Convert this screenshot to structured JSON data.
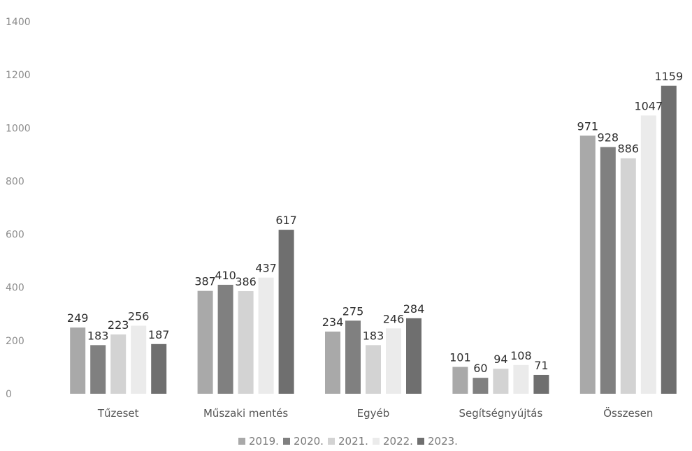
{
  "chart_data": {
    "type": "bar",
    "title": "",
    "xlabel": "",
    "ylabel": "",
    "categories": [
      "Tűzeset",
      "Műszaki mentés",
      "Egyéb",
      "Segítségnyújtás",
      "Összesen"
    ],
    "series": [
      {
        "name": "2019.",
        "color": "#a9a9a9",
        "values": [
          249,
          387,
          234,
          101,
          971
        ]
      },
      {
        "name": "2020.",
        "color": "#808080",
        "values": [
          183,
          410,
          275,
          60,
          928
        ]
      },
      {
        "name": "2021.",
        "color": "#d3d3d3",
        "values": [
          223,
          386,
          183,
          94,
          886
        ]
      },
      {
        "name": "2022.",
        "color": "#ebebeb",
        "values": [
          256,
          437,
          246,
          108,
          1047
        ]
      },
      {
        "name": "2023.",
        "color": "#6f6f6f",
        "values": [
          187,
          617,
          284,
          71,
          1159
        ]
      }
    ],
    "ylim": [
      0,
      1400
    ],
    "yticks": [
      0,
      200,
      400,
      600,
      800,
      1000,
      1200,
      1400
    ],
    "grid": false,
    "legend": "bottom-center"
  }
}
